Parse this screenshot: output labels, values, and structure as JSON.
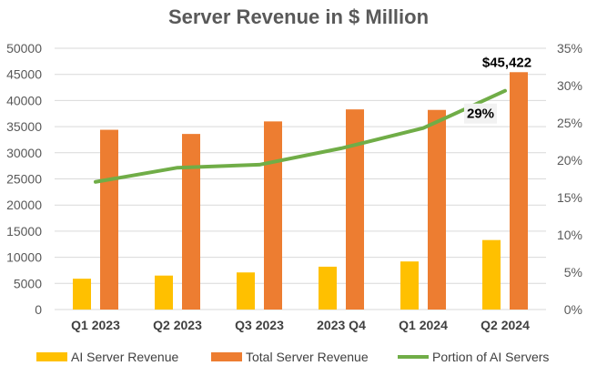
{
  "chart_data": {
    "type": "bar",
    "title": "Server Revenue in $ Million",
    "categories": [
      "Q1 2023",
      "Q2 2023",
      "Q3 2023",
      "2023 Q4",
      "Q1 2024",
      "Q2 2024"
    ],
    "series": [
      {
        "name": "AI Server Revenue",
        "type": "bar",
        "axis": "left",
        "color": "#FFC000",
        "values": [
          5900,
          6500,
          7100,
          8200,
          9200,
          13300
        ]
      },
      {
        "name": "Total Server Revenue",
        "type": "bar",
        "axis": "left",
        "color": "#ED7D31",
        "values": [
          34400,
          33600,
          36000,
          38300,
          38200,
          45422
        ]
      },
      {
        "name": "Portion of AI Servers",
        "type": "line",
        "axis": "right",
        "color": "#70AD47",
        "values": [
          0.171,
          0.19,
          0.194,
          0.216,
          0.243,
          0.293
        ]
      }
    ],
    "y_left": {
      "min": 0,
      "max": 50000,
      "ticks": [
        "0",
        "5000",
        "10000",
        "15000",
        "20000",
        "25000",
        "30000",
        "35000",
        "40000",
        "45000",
        "50000"
      ]
    },
    "y_right": {
      "min": 0,
      "max": 0.35,
      "ticks": [
        "0%",
        "5%",
        "10%",
        "15%",
        "20%",
        "25%",
        "30%",
        "35%"
      ]
    },
    "annotations": [
      {
        "text": "$45,422",
        "category": "Q2 2024",
        "series": "Total Server Revenue"
      },
      {
        "text": "29%",
        "category": "Q2 2024",
        "series": "Portion of AI Servers"
      }
    ],
    "grid": true,
    "legend_position": "bottom"
  }
}
